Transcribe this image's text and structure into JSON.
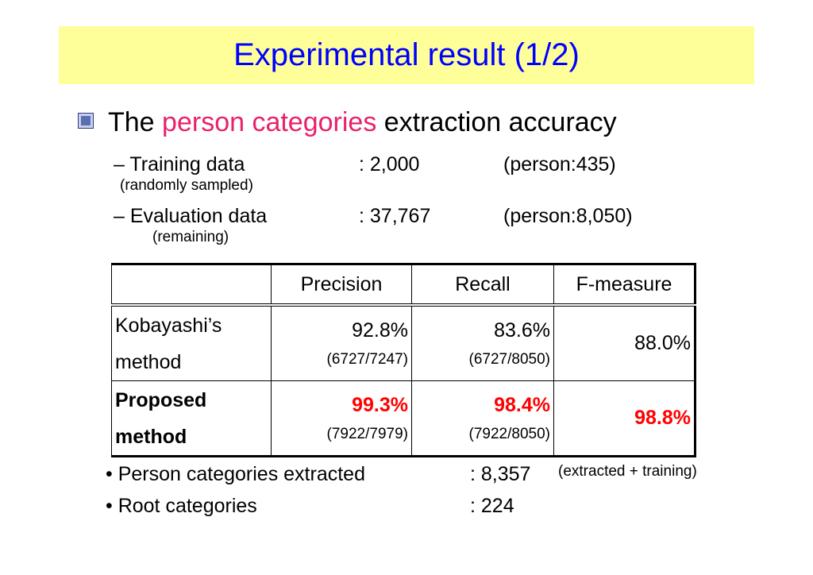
{
  "title": "Experimental result (1/2)",
  "heading": {
    "prefix": "The ",
    "highlight": "person categories",
    "suffix": " extraction accuracy"
  },
  "data_lines": [
    {
      "label": "– Training data",
      "value": ": 2,000",
      "extra": "(person:435)",
      "note": "(randomly sampled)"
    },
    {
      "label": "– Evaluation data",
      "value": ": 37,767",
      "extra": "(person:8,050)",
      "note": "(remaining)"
    }
  ],
  "table": {
    "headers": [
      "",
      "Precision",
      "Recall",
      "F-measure"
    ],
    "rows": [
      {
        "method_line1": "Kobayashi’s",
        "method_line2": "method",
        "precision": "92.8%",
        "precision_frac": "(6727/7247)",
        "recall": "83.6%",
        "recall_frac": "(6727/8050)",
        "fmeasure": "88.0%"
      },
      {
        "method_line1": "Proposed",
        "method_line2": "method",
        "precision": "99.3%",
        "precision_frac": "(7922/7979)",
        "recall": "98.4%",
        "recall_frac": "(7922/8050)",
        "fmeasure": "98.8%"
      }
    ]
  },
  "bullets": [
    {
      "label": "• Person categories extracted",
      "value": ": 8,357",
      "note": "(extracted + training)"
    },
    {
      "label": "• Root categories",
      "value": ": 224",
      "note": ""
    }
  ],
  "colors": {
    "title": "#0000ff",
    "title_band": "#ffff99",
    "highlight": "#e8216b",
    "best": "#ff0000"
  }
}
